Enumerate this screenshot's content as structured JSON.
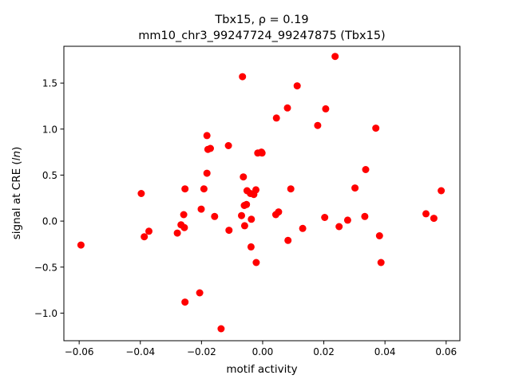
{
  "chart_data": {
    "type": "scatter",
    "title_line1": "Tbx15, ρ = 0.19",
    "title_line2": "mm10_chr3_99247724_99247875 (Tbx15)",
    "xlabel": "motif activity",
    "ylabel": "signal at CRE (ln)",
    "xlim": [
      -0.065,
      0.0645
    ],
    "ylim": [
      -1.3,
      1.9
    ],
    "xticks": [
      {
        "value": -0.06,
        "label": "−0.06"
      },
      {
        "value": -0.04,
        "label": "−0.04"
      },
      {
        "value": -0.02,
        "label": "−0.02"
      },
      {
        "value": 0.0,
        "label": "0.00"
      },
      {
        "value": 0.02,
        "label": "0.02"
      },
      {
        "value": 0.04,
        "label": "0.04"
      },
      {
        "value": 0.06,
        "label": "0.06"
      }
    ],
    "yticks": [
      {
        "value": -1.0,
        "label": "−1.0"
      },
      {
        "value": -0.5,
        "label": "−0.5"
      },
      {
        "value": 0.0,
        "label": "0.0"
      },
      {
        "value": 0.5,
        "label": "0.5"
      },
      {
        "value": 1.0,
        "label": "1.0"
      },
      {
        "value": 1.5,
        "label": "1.5"
      }
    ],
    "grid": false,
    "marker_color": "#ff0000",
    "points": [
      [
        -0.0594,
        -0.26
      ],
      [
        -0.0397,
        0.3
      ],
      [
        -0.0387,
        -0.17
      ],
      [
        -0.0372,
        -0.11
      ],
      [
        -0.0279,
        -0.13
      ],
      [
        -0.0267,
        -0.04
      ],
      [
        -0.0258,
        0.07
      ],
      [
        -0.0256,
        -0.07
      ],
      [
        -0.0254,
        0.35
      ],
      [
        -0.0254,
        -0.88
      ],
      [
        -0.0206,
        -0.78
      ],
      [
        -0.0201,
        0.13
      ],
      [
        -0.0192,
        0.35
      ],
      [
        -0.0182,
        0.93
      ],
      [
        -0.0182,
        0.52
      ],
      [
        -0.0179,
        0.78
      ],
      [
        -0.0171,
        0.79
      ],
      [
        -0.0157,
        0.05
      ],
      [
        -0.0136,
        -1.17
      ],
      [
        -0.0112,
        0.82
      ],
      [
        -0.011,
        -0.1
      ],
      [
        -0.0069,
        0.06
      ],
      [
        -0.0066,
        1.57
      ],
      [
        -0.0063,
        0.48
      ],
      [
        -0.006,
        0.17
      ],
      [
        -0.0059,
        -0.05
      ],
      [
        -0.0053,
        0.18
      ],
      [
        -0.0051,
        0.33
      ],
      [
        -0.004,
        0.3
      ],
      [
        -0.0038,
        -0.28
      ],
      [
        -0.0037,
        0.02
      ],
      [
        -0.0029,
        0.29
      ],
      [
        -0.0022,
        0.34
      ],
      [
        -0.0021,
        -0.45
      ],
      [
        -0.0016,
        0.74
      ],
      [
        -0.0004,
        0.75
      ],
      [
        -0.0002,
        0.74
      ],
      [
        0.0043,
        0.07
      ],
      [
        0.0045,
        1.12
      ],
      [
        0.0052,
        0.1
      ],
      [
        0.0081,
        1.23
      ],
      [
        0.0083,
        -0.21
      ],
      [
        0.0092,
        0.35
      ],
      [
        0.0113,
        1.47
      ],
      [
        0.0131,
        -0.08
      ],
      [
        0.018,
        1.04
      ],
      [
        0.0203,
        0.04
      ],
      [
        0.0206,
        1.22
      ],
      [
        0.0237,
        1.79
      ],
      [
        0.025,
        -0.06
      ],
      [
        0.0278,
        0.01
      ],
      [
        0.0302,
        0.36
      ],
      [
        0.0334,
        0.05
      ],
      [
        0.0337,
        0.56
      ],
      [
        0.037,
        1.01
      ],
      [
        0.0382,
        -0.16
      ],
      [
        0.0387,
        -0.45
      ],
      [
        0.0534,
        0.08
      ],
      [
        0.056,
        0.03
      ],
      [
        0.0584,
        0.33
      ]
    ]
  }
}
